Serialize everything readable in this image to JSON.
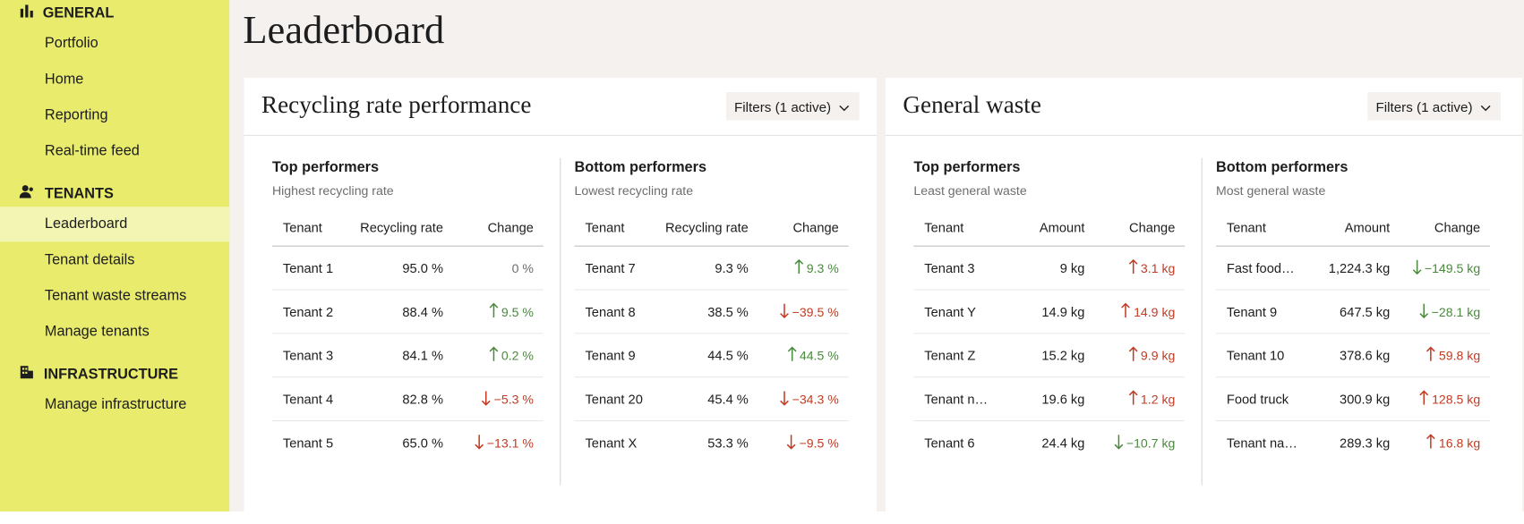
{
  "sidebar": {
    "sections": [
      {
        "title": "GENERAL",
        "items": [
          "Portfolio",
          "Home",
          "Reporting",
          "Real-time feed"
        ]
      },
      {
        "title": "TENANTS",
        "items": [
          "Leaderboard",
          "Tenant details",
          "Tenant waste streams",
          "Manage tenants"
        ]
      },
      {
        "title": "INFRASTRUCTURE",
        "items": [
          "Manage infrastructure"
        ]
      }
    ]
  },
  "header": {
    "title": "Leaderboard"
  },
  "cards": [
    {
      "title": "Recycling rate performance",
      "filter": "Filters (1 active)",
      "up_color": "#4a8a3c",
      "down_color": "#c23b22",
      "panels": [
        {
          "heading": "Top performers",
          "subheading": "Highest recycling rate",
          "columns": [
            "Tenant",
            "Recycling rate",
            "Change"
          ],
          "rows": [
            [
              "Tenant 1",
              "95.0 %",
              "0 %"
            ],
            [
              "Tenant 2",
              "88.4 %",
              "9.5 %"
            ],
            [
              "Tenant 3",
              "84.1 %",
              "0.2 %"
            ],
            [
              "Tenant 4",
              "82.8 %",
              "−5.3 %"
            ],
            [
              "Tenant 5",
              "65.0 %",
              "−13.1 %"
            ]
          ]
        },
        {
          "heading": "Bottom performers",
          "subheading": "Lowest recycling rate",
          "columns": [
            "Tenant",
            "Recycling rate",
            "Change"
          ],
          "rows": [
            [
              "Tenant 7",
              "9.3 %",
              "9.3 %"
            ],
            [
              "Tenant 8",
              "38.5 %",
              "−39.5 %"
            ],
            [
              "Tenant 9",
              "44.5 %",
              "44.5 %"
            ],
            [
              "Tenant 20",
              "45.4 %",
              "−34.3 %"
            ],
            [
              "Tenant X",
              "53.3 %",
              "−9.5 %"
            ]
          ]
        }
      ]
    },
    {
      "title": "General waste",
      "filter": "Filters (1 active)",
      "up_color": "#c23b22",
      "down_color": "#4a8a3c",
      "panels": [
        {
          "heading": "Top performers",
          "subheading": "Least general waste",
          "columns": [
            "Tenant",
            "Amount",
            "Change"
          ],
          "rows": [
            [
              "Tenant 3",
              "9 kg",
              "3.1 kg"
            ],
            [
              "Tenant Y",
              "14.9 kg",
              "14.9 kg"
            ],
            [
              "Tenant Z",
              "15.2 kg",
              "9.9 kg"
            ],
            [
              "Tenant name",
              "19.6 kg",
              "1.2 kg"
            ],
            [
              "Tenant 6",
              "24.4 kg",
              "−10.7 kg"
            ]
          ]
        },
        {
          "heading": "Bottom performers",
          "subheading": "Most general waste",
          "columns": [
            "Tenant",
            "Amount",
            "Change"
          ],
          "rows": [
            [
              "Fast food tenant",
              "1,224.3 kg",
              "−149.5 kg"
            ],
            [
              "Tenant 9",
              "647.5 kg",
              "−28.1 kg"
            ],
            [
              "Tenant 10",
              "378.6 kg",
              "59.8 kg"
            ],
            [
              "Food truck",
              "300.9 kg",
              "128.5 kg"
            ],
            [
              "Tenant name",
              "289.3 kg",
              "16.8 kg"
            ]
          ]
        }
      ]
    }
  ]
}
